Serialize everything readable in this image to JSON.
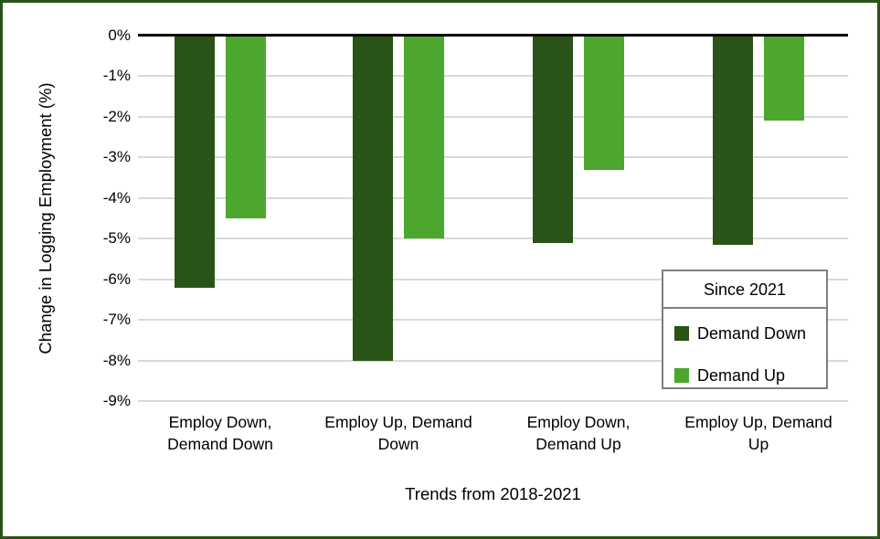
{
  "frame": {
    "border_color": "#2A5417",
    "background": "#FFFFFF"
  },
  "chart_data": {
    "type": "bar",
    "title": "",
    "xlabel": "Trends from 2018-2021",
    "ylabel": "Change in Logging Employment (%)",
    "categories": [
      "Employ Down, Demand Down",
      "Employ Up, Demand Down",
      "Employ Down, Demand Up",
      "Employ Up, Demand Up"
    ],
    "category_lines": [
      [
        "Employ Down,",
        "Demand Down"
      ],
      [
        "Employ Up, Demand",
        "Down"
      ],
      [
        "Employ Down,",
        "Demand Up"
      ],
      [
        "Employ Up, Demand",
        "Up"
      ]
    ],
    "series": [
      {
        "name": "Demand Down",
        "color": "#2A5417",
        "values": [
          -6.2,
          -8.0,
          -5.1,
          -5.15
        ]
      },
      {
        "name": "Demand Up",
        "color": "#4DA72E",
        "values": [
          -4.5,
          -5.0,
          -3.3,
          -2.1
        ]
      }
    ],
    "legend_title": "Since 2021",
    "legend_position": "inside-right",
    "ylim": [
      -9,
      0
    ],
    "ytick_labels": [
      "0%",
      "-1%",
      "-2%",
      "-3%",
      "-4%",
      "-5%",
      "-6%",
      "-7%",
      "-8%",
      "-9%"
    ],
    "ytick_values": [
      0,
      -1,
      -2,
      -3,
      -4,
      -5,
      -6,
      -7,
      -8,
      -9
    ],
    "grid": true,
    "colors": {
      "gridline": "#D9D9D9",
      "zero_line": "#000000",
      "legend_border": "#7F7F7F",
      "text": "#000000"
    }
  }
}
